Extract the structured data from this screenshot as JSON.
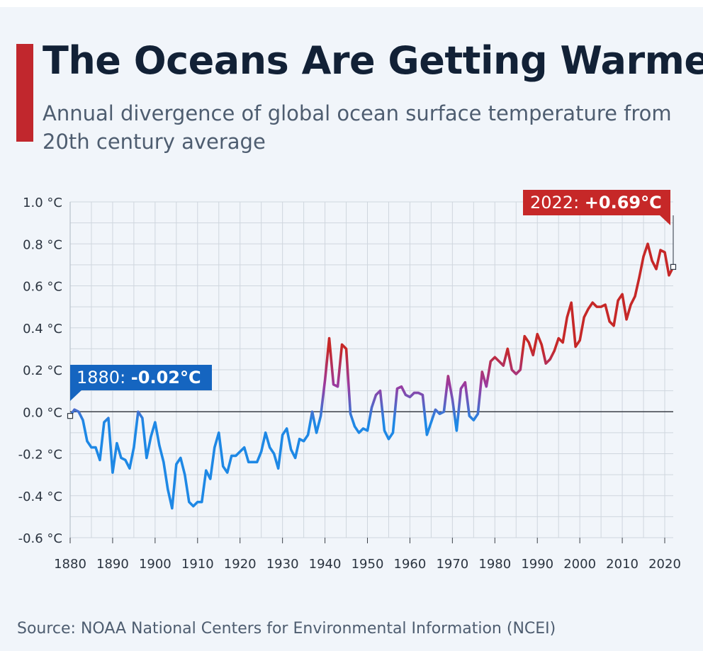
{
  "header": {
    "title": "The Oceans Are Getting Warmer",
    "subtitle": "Annual divergence of global ocean surface temperature from 20th century average"
  },
  "source": "Source: NOAA National Centers for Environmental Information (NCEI)",
  "colors": {
    "accent": "#c1272d",
    "cold": "#1e88e5",
    "warm": "#c62828",
    "title": "#122136",
    "text": "#4e5d70"
  },
  "chart_data": {
    "type": "line",
    "title": "The Oceans Are Getting Warmer",
    "subtitle": "Annual divergence of global ocean surface temperature from 20th century average",
    "xlabel": "",
    "ylabel": "",
    "xlim": [
      1880,
      2022
    ],
    "ylim": [
      -0.6,
      1.0
    ],
    "grid": true,
    "x_ticks": [
      1880,
      1890,
      1900,
      1910,
      1920,
      1930,
      1940,
      1950,
      1960,
      1970,
      1980,
      1990,
      2000,
      2010,
      2020
    ],
    "x_tick_labels": [
      "1880",
      "1890",
      "1900",
      "1910",
      "1920",
      "1930",
      "1940",
      "1950",
      "1960",
      "1970",
      "1980",
      "1990",
      "2000",
      "2010",
      "2020"
    ],
    "y_ticks": [
      1.0,
      0.8,
      0.6,
      0.4,
      0.2,
      0.0,
      -0.2,
      -0.4,
      -0.6
    ],
    "y_tick_labels": [
      "1.0 °C",
      "0.8 °C",
      "0.6 °C",
      "0.4 °C",
      "0.2 °C",
      "0.0 °C",
      "-0.2 °C",
      "-0.4 °C",
      "-0.6 °C"
    ],
    "start_year": 1880,
    "series": [
      {
        "values": [
          -0.02,
          0.01,
          0.0,
          -0.04,
          -0.14,
          -0.17,
          -0.17,
          -0.23,
          -0.05,
          -0.03,
          -0.29,
          -0.15,
          -0.22,
          -0.23,
          -0.27,
          -0.17,
          0.0,
          -0.03,
          -0.22,
          -0.12,
          -0.05,
          -0.16,
          -0.24,
          -0.37,
          -0.46,
          -0.25,
          -0.22,
          -0.3,
          -0.43,
          -0.45,
          -0.43,
          -0.43,
          -0.28,
          -0.32,
          -0.17,
          -0.1,
          -0.26,
          -0.29,
          -0.21,
          -0.21,
          -0.19,
          -0.17,
          -0.24,
          -0.24,
          -0.24,
          -0.19,
          -0.1,
          -0.17,
          -0.2,
          -0.27,
          -0.11,
          -0.08,
          -0.18,
          -0.22,
          -0.13,
          -0.14,
          -0.11,
          0.0,
          -0.1,
          -0.02,
          0.15,
          0.35,
          0.13,
          0.12,
          0.32,
          0.3,
          -0.01,
          -0.07,
          -0.1,
          -0.08,
          -0.09,
          0.02,
          0.08,
          0.1,
          -0.09,
          -0.13,
          -0.1,
          0.11,
          0.12,
          0.08,
          0.07,
          0.09,
          0.09,
          0.08,
          -0.11,
          -0.05,
          0.01,
          -0.01,
          0.0,
          0.17,
          0.06,
          -0.09,
          0.11,
          0.14,
          -0.02,
          -0.04,
          -0.01,
          0.19,
          0.12,
          0.24,
          0.26,
          0.24,
          0.22,
          0.3,
          0.2,
          0.18,
          0.2,
          0.36,
          0.33,
          0.27,
          0.37,
          0.32,
          0.23,
          0.25,
          0.29,
          0.35,
          0.33,
          0.45,
          0.52,
          0.31,
          0.34,
          0.45,
          0.49,
          0.52,
          0.5,
          0.5,
          0.51,
          0.43,
          0.41,
          0.53,
          0.56,
          0.44,
          0.51,
          0.55,
          0.64,
          0.74,
          0.8,
          0.72,
          0.68,
          0.77,
          0.76,
          0.65,
          0.69
        ]
      }
    ],
    "annotations": [
      {
        "label": "1880: ",
        "value_text": "-0.02°C",
        "x": 1880,
        "y": -0.02,
        "color": "#1565c0"
      },
      {
        "label": "2022: ",
        "value_text": "+0.69°C",
        "x": 2022,
        "y": 0.69,
        "color": "#c62828"
      }
    ]
  }
}
